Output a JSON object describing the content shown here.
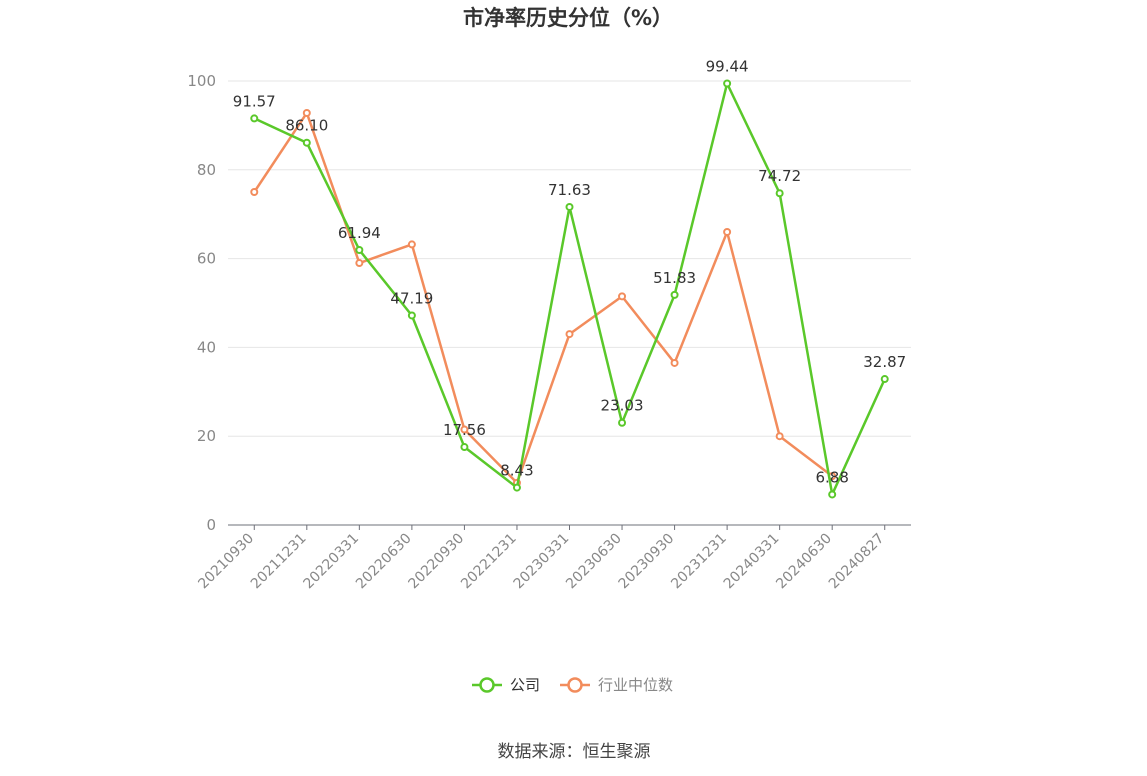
{
  "chart_data": {
    "type": "line",
    "title": "市净率历史分位（%）",
    "x": [
      "20210930",
      "20211231",
      "20220331",
      "20220630",
      "20220930",
      "20221231",
      "20230331",
      "20230630",
      "20230930",
      "20231231",
      "20240331",
      "20240630",
      "20240827"
    ],
    "ylim": [
      0,
      100
    ],
    "yticks": [
      0,
      20,
      40,
      60,
      80,
      100
    ],
    "grid": true,
    "legend_position": "bottom",
    "series": [
      {
        "name": "公司",
        "color": "#5ac82a",
        "values": [
          91.57,
          86.1,
          61.94,
          47.19,
          17.56,
          8.43,
          71.63,
          23.03,
          51.83,
          99.44,
          74.72,
          6.88,
          32.87
        ],
        "labels": [
          "91.57",
          "86.10",
          "61.94",
          "47.19",
          "17.56",
          "8.43",
          "71.63",
          "23.03",
          "51.83",
          "99.44",
          "74.72",
          "6.88",
          "32.87"
        ]
      },
      {
        "name": "行业中位数",
        "color": "#f28c5c",
        "values": [
          75.0,
          92.8,
          59.0,
          63.2,
          21.5,
          9.5,
          43.0,
          51.5,
          36.5,
          66.0,
          20.0,
          11.0,
          null
        ]
      }
    ],
    "source": "数据来源：恒生聚源"
  }
}
